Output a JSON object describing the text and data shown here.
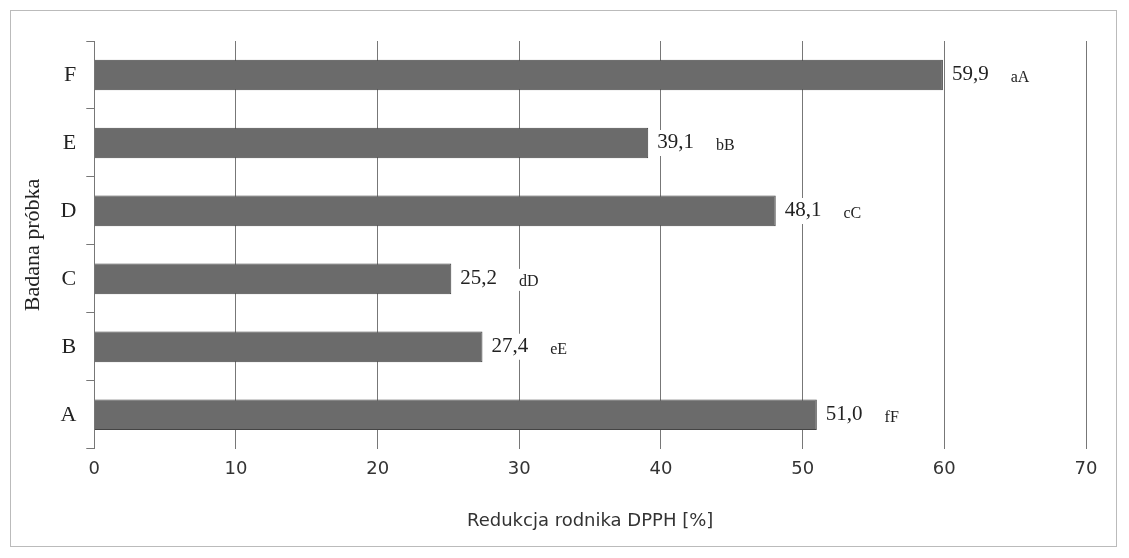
{
  "chart_data": {
    "type": "bar",
    "orientation": "horizontal",
    "categories": [
      "F",
      "E",
      "D",
      "C",
      "B",
      "A"
    ],
    "values": [
      59.9,
      39.1,
      48.1,
      25.2,
      27.4,
      51.0
    ],
    "value_labels": [
      "59,9",
      "39,1",
      "48,1",
      "25,2",
      "27,4",
      "51,0"
    ],
    "color": "#6b6b6b",
    "xlim": [
      0,
      70
    ],
    "xticks": [
      0,
      10,
      20,
      30,
      40,
      50,
      60,
      70
    ],
    "xlabel": "Redukcja rodnika DPPH [%]",
    "ylabel": "Badana próbka",
    "grid": "x",
    "annotations": [
      "aA",
      "bB",
      "cC",
      "dD",
      "eE",
      "fF"
    ]
  }
}
